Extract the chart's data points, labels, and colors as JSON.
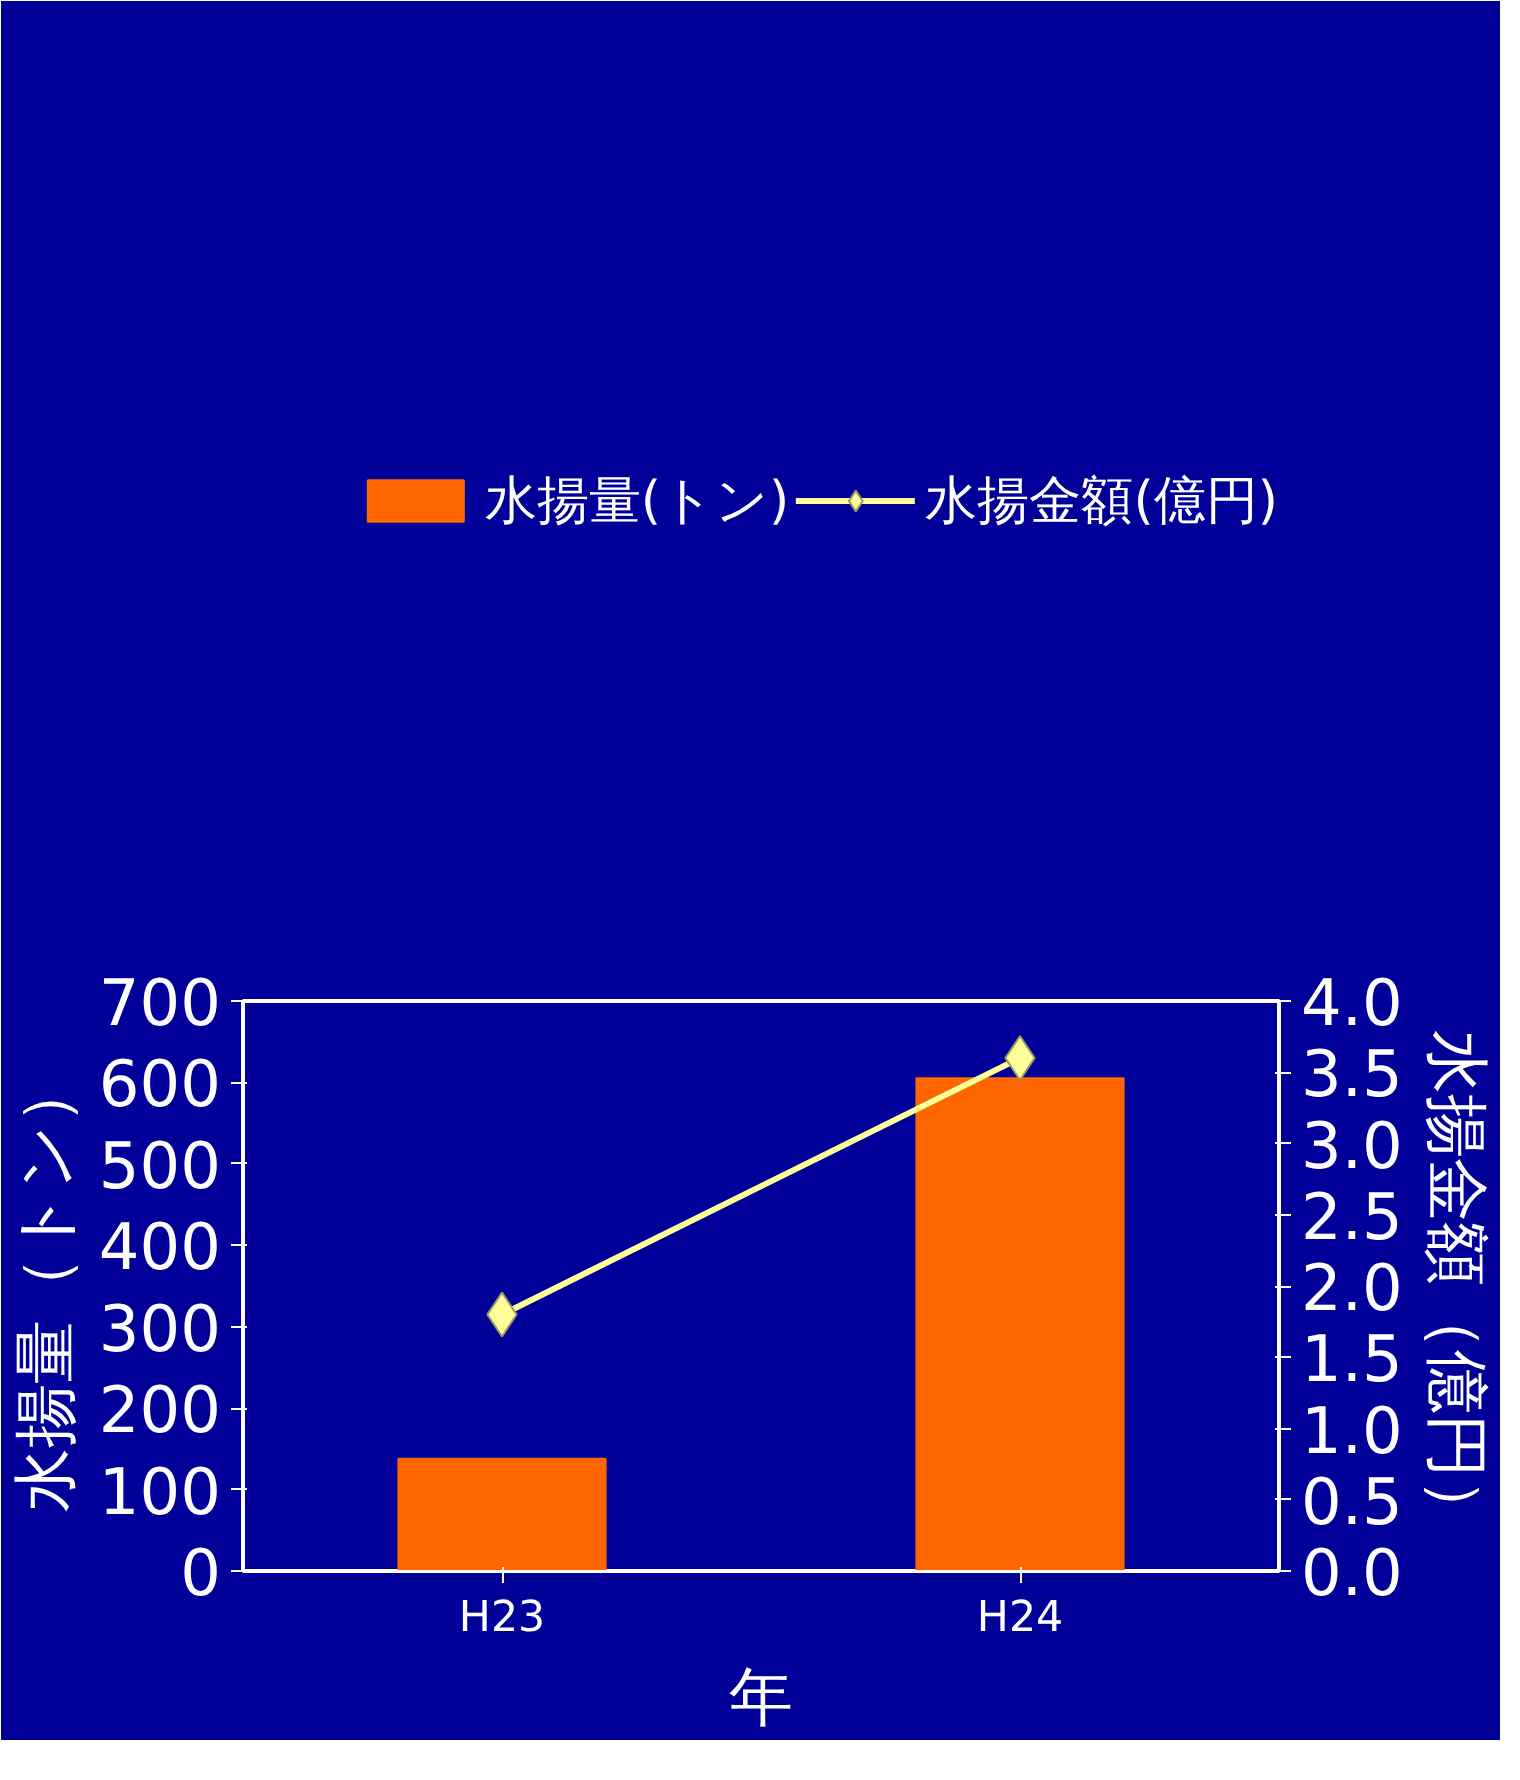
{
  "chart_data": {
    "type": "bar",
    "categories": [
      "H23",
      "H24"
    ],
    "xlabel": "年",
    "ylabel": "水揚量（トン）",
    "y2label": "水揚金額（億円）",
    "series": [
      {
        "name": "水揚量(トン)",
        "color": "#ff6600",
        "values": [
          138,
          605
        ]
      },
      {
        "name": "水揚金額(億円)",
        "type": "line",
        "axis": "y2",
        "color": "#ffff99",
        "values": [
          1.8,
          3.6
        ],
        "marker": "diamond"
      }
    ],
    "ylim": [
      0,
      700
    ],
    "yticks": [
      0,
      100,
      200,
      300,
      400,
      500,
      600,
      700
    ],
    "y2lim": [
      0,
      4.0
    ],
    "y2ticks": [
      {
        "value": 0,
        "label": "0.0"
      },
      {
        "value": 0.5,
        "label": "0.5"
      },
      {
        "value": 1,
        "label": "1.0"
      },
      {
        "value": 1.5,
        "label": "1.5"
      },
      {
        "value": 2,
        "label": "2.0"
      },
      {
        "value": 2.5,
        "label": "2.5"
      },
      {
        "value": 3,
        "label": "3.0"
      },
      {
        "value": 3.5,
        "label": "3.5"
      },
      {
        "value": 4,
        "label": "4.0"
      }
    ],
    "grid": false,
    "legend": "top"
  }
}
